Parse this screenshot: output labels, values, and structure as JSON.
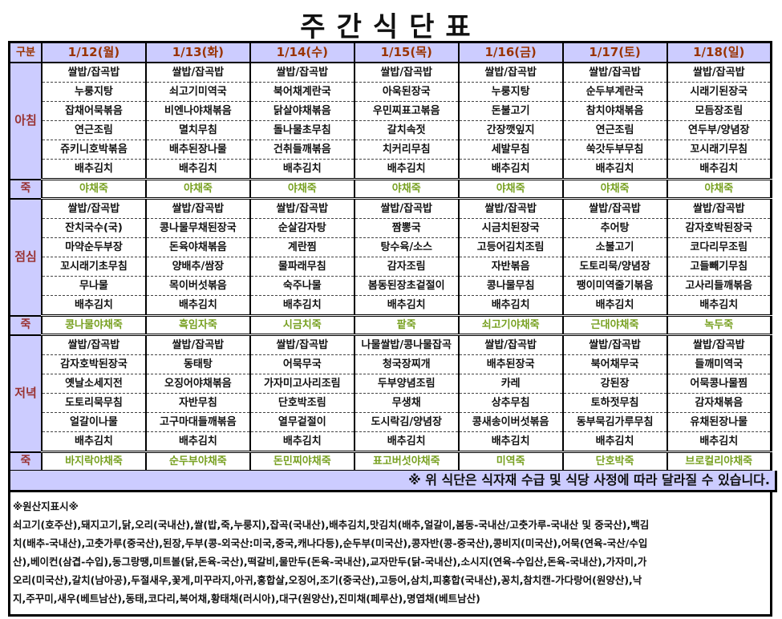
{
  "title": "주간식단표",
  "header": {
    "gubun": "구분",
    "days": [
      "1/12(월)",
      "1/13(화)",
      "1/14(수)",
      "1/15(목)",
      "1/16(금)",
      "1/17(토)",
      "1/18(일)"
    ]
  },
  "porridge_label": "죽",
  "meals": [
    {
      "label": "아침",
      "rows": [
        [
          "쌀밥/잡곡밥",
          "쌀밥/잡곡밥",
          "쌀밥/잡곡밥",
          "쌀밥/잡곡밥",
          "쌀밥/잡곡밥",
          "쌀밥/잡곡밥",
          "쌀밥/잡곡밥"
        ],
        [
          "누룽지탕",
          "쇠고기미역국",
          "북어채계란국",
          "아욱된장국",
          "누룽지탕",
          "순두부계란국",
          "시래기된장국"
        ],
        [
          "잡채어묵볶음",
          "비엔나야채볶음",
          "닭살야채볶음",
          "우민찌표고볶음",
          "돈불고기",
          "참치야채볶음",
          "모듬장조림"
        ],
        [
          "연근조림",
          "멸치무침",
          "돌나물초무침",
          "갈치속젓",
          "간장깻잎지",
          "연근조림",
          "연두부/양념장"
        ],
        [
          "쥬키니호박볶음",
          "배추된장나물",
          "건취들깨볶음",
          "치커리무침",
          "세발무침",
          "쑥갓두부무침",
          "꼬시래기무침"
        ],
        [
          "배추김치",
          "배추김치",
          "배추김치",
          "배추김치",
          "배추김치",
          "배추김치",
          "배추김치"
        ]
      ],
      "porridge": [
        "야채죽",
        "야채죽",
        "야채죽",
        "야채죽",
        "야채죽",
        "야채죽",
        "야채죽"
      ]
    },
    {
      "label": "점심",
      "rows": [
        [
          "쌀밥/잡곡밥",
          "쌀밥/잡곡밥",
          "쌀밥/잡곡밥",
          "쌀밥/잡곡밥",
          "쌀밥/잡곡밥",
          "쌀밥/잡곡밥",
          "쌀밥/잡곡밥"
        ],
        [
          "잔치국수(국)",
          "콩나물무채된장국",
          "순살감자탕",
          "짬뽕국",
          "시금치된장국",
          "추어탕",
          "감자호박된장국"
        ],
        [
          "마약순두부장",
          "돈육야채볶음",
          "계란찜",
          "탕수육/소스",
          "고등어김치조림",
          "소불고기",
          "코다리무조림"
        ],
        [
          "꼬시래기초무침",
          "양배추/쌈장",
          "물파래무침",
          "감자조림",
          "자반볶음",
          "도토리묵/양념장",
          "고들빼기무침"
        ],
        [
          "무나물",
          "목이버섯볶음",
          "숙주나물",
          "봄동된장초겉절이",
          "콩나물무침",
          "팽이미역줄기볶음",
          "고사리들깨볶음"
        ],
        [
          "배추김치",
          "배추김치",
          "배추김치",
          "배추김치",
          "배추김치",
          "배추김치",
          "배추김치"
        ]
      ],
      "porridge": [
        "콩나물야채죽",
        "흑임자죽",
        "시금치죽",
        "팥죽",
        "쇠고기야채죽",
        "근대야채죽",
        "녹두죽"
      ]
    },
    {
      "label": "저녁",
      "rows": [
        [
          "쌀밥/잡곡밥",
          "쌀밥/잡곡밥",
          "쌀밥/잡곡밥",
          "나물쌀밥/콩나물잡곡",
          "쌀밥/잡곡밥",
          "쌀밥/잡곡밥",
          "쌀밥/잡곡밥"
        ],
        [
          "감자호박된장국",
          "동태탕",
          "어묵무국",
          "청국장찌개",
          "배추된장국",
          "북어채무국",
          "들깨미역국"
        ],
        [
          "옛날소세지전",
          "오징어야채볶음",
          "가자미고사리조림",
          "두부양념조림",
          "카레",
          "강된장",
          "어묵콩나물찜"
        ],
        [
          "도토리묵무침",
          "자반무침",
          "단호박조림",
          "무생채",
          "상추무침",
          "토하젓무침",
          "감자채볶음"
        ],
        [
          "얼갈이나물",
          "고구마대들깨볶음",
          "열무겉절이",
          "도시락김/양념장",
          "콩새송이버섯볶음",
          "동부묵김가루무침",
          "유채된장나물"
        ],
        [
          "배추김치",
          "배추김치",
          "배추김치",
          "배추김치",
          "배추김치",
          "배추김치",
          "배추김치"
        ]
      ],
      "porridge": [
        "바지락야채죽",
        "순두부야채죽",
        "돈민찌야채죽",
        "표고버섯야채죽",
        "미역죽",
        "단호박죽",
        "브로컬리야채죽"
      ]
    }
  ],
  "notice": "※  위 식단은 식자재 수급 및 식당 사정에 따라 달라질 수 있습니다.",
  "origin": {
    "heading": "※원산지표시※",
    "lines": [
      "쇠고기(호주산),돼지고기,닭,오리(국내산),쌀(밥,죽,누룽지),잡곡(국내산),배추김치,맛김치(배추,얼갈이,봄동-국내산/고춧가루-국내산 및 중국산),백김",
      "치(배추-국내산),고춧가루(중국산),된장,두부(콩-외국산:미국,중국,캐나다등),순두부(미국산),콩자반(콩-중국산),콩비지(미국산),어묵(연육-국산/수입",
      "산),베이컨(삼겹-수입),동그랑땡,미트볼(닭,돈육-국산),떡갈비,물만두(돈육-국내산),교자만두(닭-국내산),소시지(연육-수입산,돈육-국내산),가자미,가",
      "오리(미국산),갈치(남아공),두절새우,꽃게,미꾸라지,아귀,홍합살,오징어,조기(중국산),고등어,삼치,피홍합(국내산),꽁치,참치캔-가다랑어(원양산),낙",
      "지,주꾸미,새우(베트남산),동태,코다리,북어채,황태채(러시아),대구(원양산),진미채(페루산),명엽채(베트남산)"
    ]
  },
  "colors": {
    "header_bg": "#ccccff",
    "day_text": "#993300",
    "meal_label": "#993333",
    "porridge_text": "#77a020"
  }
}
